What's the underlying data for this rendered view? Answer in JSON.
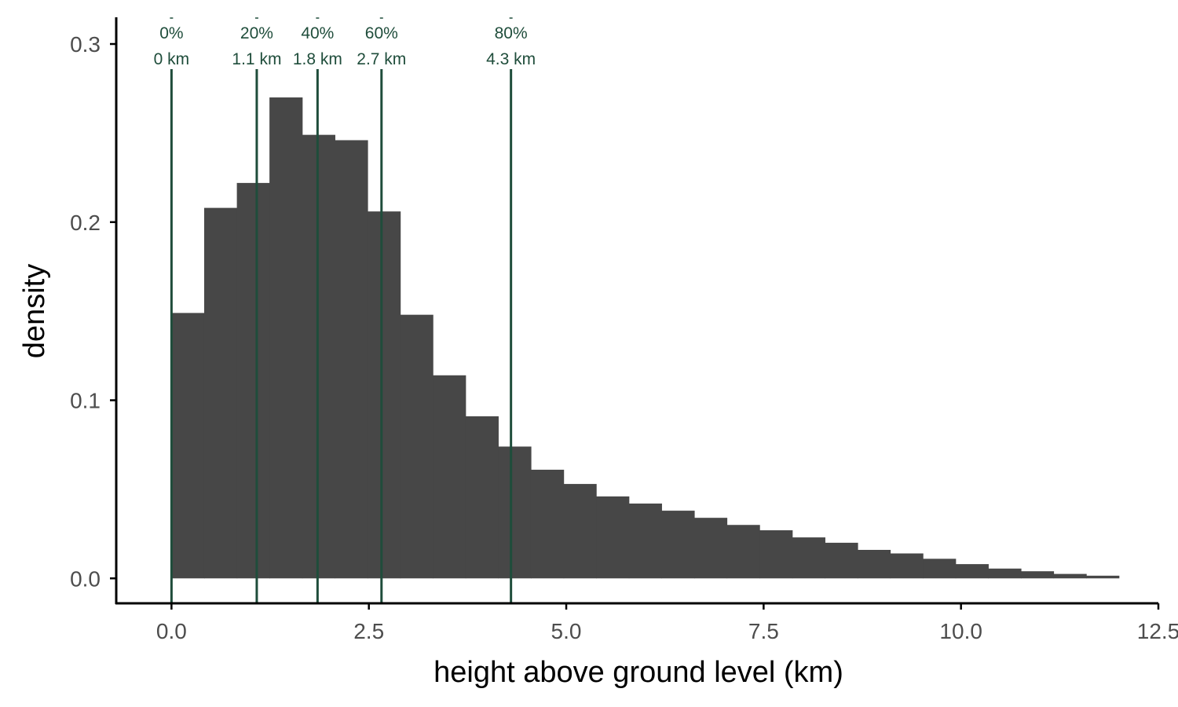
{
  "chart_data": {
    "type": "bar",
    "subtype": "histogram",
    "xlabel": "height above ground level (km)",
    "ylabel": "density",
    "xlim": [
      -0.7,
      12.5
    ],
    "ylim": [
      -0.014,
      0.315
    ],
    "x_ticks": [
      0.0,
      2.5,
      5.0,
      7.5,
      10.0,
      12.5
    ],
    "x_tick_labels": [
      "0.0",
      "2.5",
      "5.0",
      "7.5",
      "10.0",
      "12.5"
    ],
    "y_ticks": [
      0.0,
      0.1,
      0.2,
      0.3
    ],
    "y_tick_labels": [
      "0.0",
      "0.1",
      "0.2",
      "0.3"
    ],
    "grid": false,
    "legend": "none",
    "bin_width": 0.414,
    "bins": [
      {
        "x0": 0.0,
        "x1": 0.414,
        "density": 0.149
      },
      {
        "x0": 0.414,
        "x1": 0.828,
        "density": 0.208
      },
      {
        "x0": 0.828,
        "x1": 1.241,
        "density": 0.222
      },
      {
        "x0": 1.241,
        "x1": 1.655,
        "density": 0.27
      },
      {
        "x0": 1.655,
        "x1": 2.069,
        "density": 0.249
      },
      {
        "x0": 2.069,
        "x1": 2.483,
        "density": 0.246
      },
      {
        "x0": 2.483,
        "x1": 2.897,
        "density": 0.206
      },
      {
        "x0": 2.897,
        "x1": 3.31,
        "density": 0.148
      },
      {
        "x0": 3.31,
        "x1": 3.724,
        "density": 0.114
      },
      {
        "x0": 3.724,
        "x1": 4.138,
        "density": 0.091
      },
      {
        "x0": 4.138,
        "x1": 4.552,
        "density": 0.074
      },
      {
        "x0": 4.552,
        "x1": 4.966,
        "density": 0.061
      },
      {
        "x0": 4.966,
        "x1": 5.379,
        "density": 0.053
      },
      {
        "x0": 5.379,
        "x1": 5.793,
        "density": 0.046
      },
      {
        "x0": 5.793,
        "x1": 6.207,
        "density": 0.042
      },
      {
        "x0": 6.207,
        "x1": 6.621,
        "density": 0.038
      },
      {
        "x0": 6.621,
        "x1": 7.034,
        "density": 0.034
      },
      {
        "x0": 7.034,
        "x1": 7.448,
        "density": 0.03
      },
      {
        "x0": 7.448,
        "x1": 7.862,
        "density": 0.027
      },
      {
        "x0": 7.862,
        "x1": 8.276,
        "density": 0.023
      },
      {
        "x0": 8.276,
        "x1": 8.69,
        "density": 0.02
      },
      {
        "x0": 8.69,
        "x1": 9.103,
        "density": 0.016
      },
      {
        "x0": 9.103,
        "x1": 9.517,
        "density": 0.014
      },
      {
        "x0": 9.517,
        "x1": 9.931,
        "density": 0.011
      },
      {
        "x0": 9.931,
        "x1": 10.345,
        "density": 0.008
      },
      {
        "x0": 10.345,
        "x1": 10.759,
        "density": 0.0055
      },
      {
        "x0": 10.759,
        "x1": 11.172,
        "density": 0.004
      },
      {
        "x0": 11.172,
        "x1": 11.586,
        "density": 0.0025
      },
      {
        "x0": 11.586,
        "x1": 12.0,
        "density": 0.0015
      }
    ],
    "quantile_markers": [
      {
        "x": 0.0,
        "percent_label": "0%",
        "value_label": "0 km"
      },
      {
        "x": 1.08,
        "percent_label": "20%",
        "value_label": "1.1 km"
      },
      {
        "x": 1.85,
        "percent_label": "40%",
        "value_label": "1.8 km"
      },
      {
        "x": 2.66,
        "percent_label": "60%",
        "value_label": "2.7 km"
      },
      {
        "x": 4.3,
        "percent_label": "80%",
        "value_label": "4.3 km"
      }
    ],
    "colors": {
      "bars": "#474747",
      "markers": "#1f4d3b",
      "axis": "#000000",
      "tick_text": "#4d4d4d",
      "background": "#ffffff"
    }
  }
}
